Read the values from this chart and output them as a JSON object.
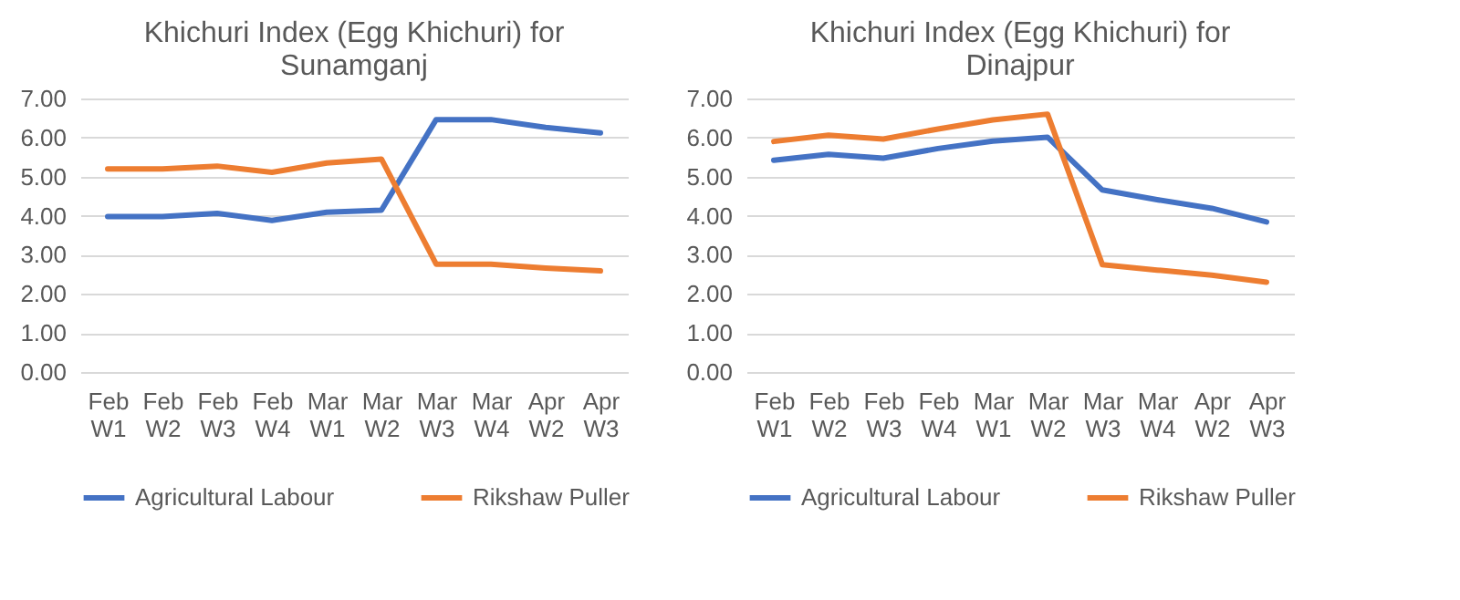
{
  "chart_data": [
    {
      "type": "line",
      "title": "Khichuri Index (Egg Khichuri) for Sunamganj",
      "categories": [
        "Feb W1",
        "Feb W2",
        "Feb W3",
        "Feb W4",
        "Mar W1",
        "Mar W2",
        "Mar W3",
        "Mar W4",
        "Apr W2",
        "Apr W3"
      ],
      "series": [
        {
          "name": "Agricultural Labour",
          "color": "#4472c4",
          "values": [
            3.98,
            3.98,
            4.06,
            3.88,
            4.09,
            4.14,
            6.46,
            6.46,
            6.26,
            6.12
          ]
        },
        {
          "name": "Rikshaw Puller",
          "color": "#ed7d31",
          "values": [
            5.2,
            5.2,
            5.27,
            5.11,
            5.35,
            5.45,
            2.76,
            2.76,
            2.66,
            2.59
          ]
        }
      ],
      "ylim": [
        0,
        7
      ],
      "yticks": [
        {
          "value": 0,
          "label": "0.00"
        },
        {
          "value": 1,
          "label": "1.00"
        },
        {
          "value": 2,
          "label": "2.00"
        },
        {
          "value": 3,
          "label": "3.00"
        },
        {
          "value": 4,
          "label": "4.00"
        },
        {
          "value": 5,
          "label": "5.00"
        },
        {
          "value": 6,
          "label": "6.00"
        },
        {
          "value": 7,
          "label": "7.00"
        }
      ],
      "grid": "y",
      "legend": "bottom",
      "marker": "none",
      "line_style": "solid"
    },
    {
      "type": "line",
      "title": "Khichuri Index (Egg Khichuri) for Dinajpur",
      "categories": [
        "Feb W1",
        "Feb W2",
        "Feb W3",
        "Feb W4",
        "Mar W1",
        "Mar W2",
        "Mar W3",
        "Mar W4",
        "Apr W2",
        "Apr W3"
      ],
      "series": [
        {
          "name": "Agricultural Labour",
          "color": "#4472c4",
          "values": [
            5.42,
            5.57,
            5.47,
            5.72,
            5.91,
            6.01,
            4.66,
            4.41,
            4.19,
            3.84
          ]
        },
        {
          "name": "Rikshaw Puller",
          "color": "#ed7d31",
          "values": [
            5.9,
            6.06,
            5.96,
            6.22,
            6.45,
            6.6,
            2.75,
            2.61,
            2.48,
            2.3
          ]
        }
      ],
      "ylim": [
        0,
        7
      ],
      "yticks": [
        {
          "value": 0,
          "label": "0.00"
        },
        {
          "value": 1,
          "label": "1.00"
        },
        {
          "value": 2,
          "label": "2.00"
        },
        {
          "value": 3,
          "label": "3.00"
        },
        {
          "value": 4,
          "label": "4.00"
        },
        {
          "value": 5,
          "label": "5.00"
        },
        {
          "value": 6,
          "label": "6.00"
        },
        {
          "value": 7,
          "label": "7.00"
        }
      ],
      "grid": "y",
      "legend": "bottom",
      "marker": "none",
      "line_style": "solid"
    }
  ]
}
